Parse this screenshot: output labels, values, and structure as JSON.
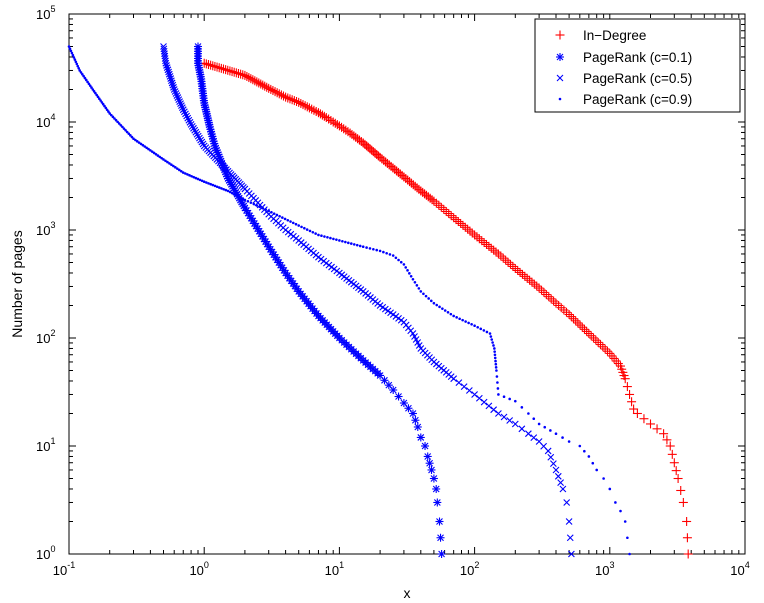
{
  "chart_data": {
    "type": "scatter",
    "title": "",
    "xlabel": "x",
    "ylabel": "Number of pages",
    "xscale": "log",
    "yscale": "log",
    "xlim": [
      0.1,
      10000
    ],
    "ylim": [
      1,
      100000
    ],
    "grid": false,
    "legend_position": "top-right",
    "x_ticks": [
      {
        "base": "10",
        "exp": "-1",
        "value": 0.1
      },
      {
        "base": "10",
        "exp": "0",
        "value": 1
      },
      {
        "base": "10",
        "exp": "1",
        "value": 10
      },
      {
        "base": "10",
        "exp": "2",
        "value": 100
      },
      {
        "base": "10",
        "exp": "3",
        "value": 1000
      },
      {
        "base": "10",
        "exp": "4",
        "value": 10000
      }
    ],
    "y_ticks": [
      {
        "base": "10",
        "exp": "0",
        "value": 1
      },
      {
        "base": "10",
        "exp": "1",
        "value": 10
      },
      {
        "base": "10",
        "exp": "2",
        "value": 100
      },
      {
        "base": "10",
        "exp": "3",
        "value": 1000
      },
      {
        "base": "10",
        "exp": "4",
        "value": 10000
      },
      {
        "base": "10",
        "exp": "5",
        "value": 100000
      }
    ],
    "series": [
      {
        "name": "In−Degree",
        "marker": "plus",
        "color": "#ff0000",
        "points": [
          [
            1,
            35000
          ],
          [
            2,
            27000
          ],
          [
            3,
            20500
          ],
          [
            4,
            17000
          ],
          [
            5,
            15200
          ],
          [
            6,
            13500
          ],
          [
            7,
            12200
          ],
          [
            8,
            11000
          ],
          [
            9,
            10000
          ],
          [
            10,
            9200
          ],
          [
            12,
            7900
          ],
          [
            15,
            6400
          ],
          [
            20,
            4700
          ],
          [
            30,
            3100
          ],
          [
            40,
            2300
          ],
          [
            50,
            1850
          ],
          [
            70,
            1300
          ],
          [
            100,
            900
          ],
          [
            150,
            600
          ],
          [
            200,
            440
          ],
          [
            300,
            290
          ],
          [
            400,
            210
          ],
          [
            500,
            165
          ],
          [
            700,
            110
          ],
          [
            1000,
            72
          ],
          [
            1200,
            55
          ],
          [
            1300,
            42
          ],
          [
            1400,
            30
          ],
          [
            1500,
            22
          ],
          [
            1600,
            20
          ],
          [
            2000,
            16
          ],
          [
            2500,
            13
          ],
          [
            2800,
            10
          ],
          [
            3000,
            7
          ],
          [
            3200,
            5
          ],
          [
            3500,
            3
          ],
          [
            3700,
            2
          ],
          [
            3800,
            1
          ]
        ]
      },
      {
        "name": "PageRank (c=0.1)",
        "marker": "star",
        "color": "#0000ff",
        "points": [
          [
            0.9,
            50000
          ],
          [
            0.9,
            35000
          ],
          [
            0.95,
            25000
          ],
          [
            1,
            15000
          ],
          [
            1.1,
            9000
          ],
          [
            1.2,
            6000
          ],
          [
            1.5,
            3000
          ],
          [
            2,
            1600
          ],
          [
            3,
            700
          ],
          [
            4,
            400
          ],
          [
            5,
            270
          ],
          [
            7,
            160
          ],
          [
            10,
            100
          ],
          [
            15,
            62
          ],
          [
            20,
            45
          ],
          [
            25,
            33
          ],
          [
            30,
            25
          ],
          [
            35,
            20
          ],
          [
            38,
            15
          ],
          [
            40,
            12
          ],
          [
            43,
            10
          ],
          [
            45,
            8
          ],
          [
            48,
            6
          ],
          [
            50,
            5
          ],
          [
            52,
            4
          ],
          [
            53,
            3
          ],
          [
            55,
            2
          ],
          [
            57,
            1
          ]
        ]
      },
      {
        "name": "PageRank (c=0.5)",
        "marker": "x",
        "color": "#0000ff",
        "points": [
          [
            0.5,
            50000
          ],
          [
            0.52,
            35000
          ],
          [
            0.6,
            20000
          ],
          [
            0.7,
            13000
          ],
          [
            0.8,
            9500
          ],
          [
            1,
            6000
          ],
          [
            1.5,
            3500
          ],
          [
            2,
            2400
          ],
          [
            3,
            1400
          ],
          [
            4,
            1000
          ],
          [
            5,
            800
          ],
          [
            7,
            560
          ],
          [
            10,
            400
          ],
          [
            15,
            270
          ],
          [
            20,
            200
          ],
          [
            25,
            165
          ],
          [
            30,
            140
          ],
          [
            35,
            110
          ],
          [
            40,
            80
          ],
          [
            50,
            60
          ],
          [
            70,
            42
          ],
          [
            100,
            30
          ],
          [
            150,
            20
          ],
          [
            200,
            16
          ],
          [
            250,
            13
          ],
          [
            300,
            11
          ],
          [
            350,
            9
          ],
          [
            400,
            6
          ],
          [
            450,
            4
          ],
          [
            480,
            3
          ],
          [
            500,
            2
          ],
          [
            520,
            1
          ]
        ]
      },
      {
        "name": "PageRank (c=0.9)",
        "marker": "dot",
        "color": "#0000ff",
        "points": [
          [
            0.1,
            50000
          ],
          [
            0.12,
            30000
          ],
          [
            0.15,
            20000
          ],
          [
            0.2,
            12000
          ],
          [
            0.3,
            7000
          ],
          [
            0.5,
            4500
          ],
          [
            0.7,
            3400
          ],
          [
            1,
            2800
          ],
          [
            1.5,
            2300
          ],
          [
            2,
            1900
          ],
          [
            3,
            1500
          ],
          [
            5,
            1100
          ],
          [
            7,
            900
          ],
          [
            10,
            800
          ],
          [
            15,
            700
          ],
          [
            20,
            640
          ],
          [
            25,
            580
          ],
          [
            30,
            480
          ],
          [
            35,
            350
          ],
          [
            40,
            270
          ],
          [
            50,
            210
          ],
          [
            70,
            160
          ],
          [
            100,
            130
          ],
          [
            130,
            110
          ],
          [
            140,
            80
          ],
          [
            145,
            50
          ],
          [
            150,
            30
          ],
          [
            200,
            26
          ],
          [
            250,
            20
          ],
          [
            300,
            16
          ],
          [
            400,
            13
          ],
          [
            500,
            11
          ],
          [
            600,
            10
          ],
          [
            700,
            8
          ],
          [
            800,
            6
          ],
          [
            900,
            5
          ],
          [
            1000,
            4
          ],
          [
            1100,
            3
          ],
          [
            1200,
            2.5
          ],
          [
            1300,
            2
          ],
          [
            1400,
            1
          ]
        ]
      }
    ]
  }
}
